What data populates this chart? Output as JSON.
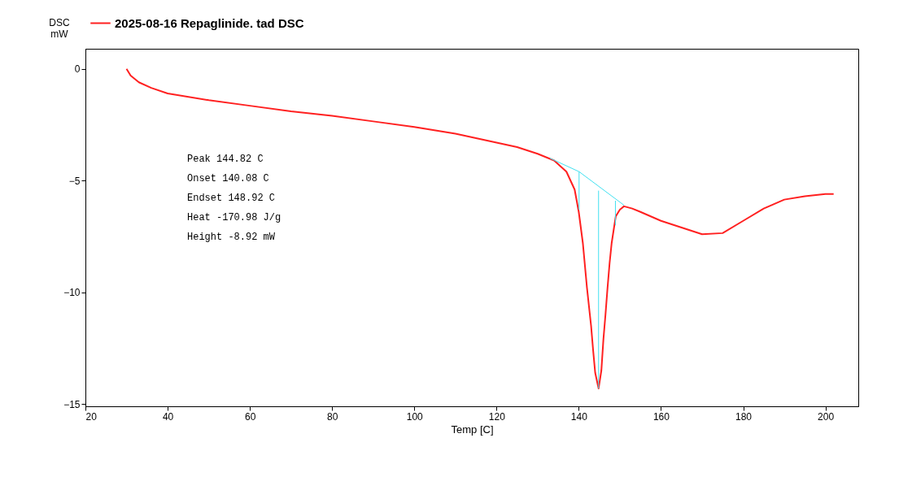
{
  "chart_data": {
    "type": "line",
    "xlabel": "Temp   [C]",
    "ylabel": "DSC mW",
    "xlim": [
      20,
      208
    ],
    "xticks": [
      20,
      40,
      60,
      80,
      100,
      120,
      140,
      160,
      180,
      200
    ],
    "ylim": [
      -15.1,
      0.9
    ],
    "yticks": [
      -15,
      -10,
      -5,
      0
    ],
    "grid": false,
    "legend": "top",
    "marker": "none",
    "line_style": "solid",
    "annotations": [
      "Peak          144.82  C",
      "Onset         140.08  C",
      "Endset        148.92  C",
      "Heat          -170.98  J/g",
      "Height        -8.92  mW"
    ],
    "series": [
      {
        "name": "2025-08-16 Repaglinide. tad DSC",
        "color": "#ff2020",
        "x": [
          30,
          31,
          33,
          36,
          40,
          50,
          60,
          70,
          80,
          90,
          100,
          110,
          120,
          125,
          130,
          134,
          137,
          139,
          140,
          141,
          142,
          143,
          143.5,
          144,
          144.82,
          145.5,
          146,
          146.5,
          147,
          147.5,
          148,
          149,
          150,
          151,
          153,
          155,
          160,
          165,
          170,
          175,
          180,
          185,
          190,
          195,
          200,
          202
        ],
        "values": [
          0,
          -0.3,
          -0.6,
          -0.85,
          -1.1,
          -1.4,
          -1.65,
          -1.9,
          -2.1,
          -2.35,
          -2.6,
          -2.9,
          -3.3,
          -3.5,
          -3.8,
          -4.1,
          -4.6,
          -5.4,
          -6.4,
          -7.8,
          -9.8,
          -11.5,
          -12.6,
          -13.6,
          -14.3,
          -13.5,
          -12.1,
          -11,
          -9.8,
          -8.7,
          -7.8,
          -6.6,
          -6.3,
          -6.15,
          -6.25,
          -6.4,
          -6.8,
          -7.1,
          -7.4,
          -7.35,
          -6.8,
          -6.25,
          -5.85,
          -5.7,
          -5.6,
          -5.6
        ]
      },
      {
        "color": "#40e0f0",
        "x": [
          133,
          140.08,
          151
        ],
        "values": [
          -4.0,
          -4.6,
          -6.1
        ]
      },
      {
        "color": "#40e0f0",
        "x": [
          140.08,
          140.08
        ],
        "values": [
          -4.6,
          -6.3
        ]
      },
      {
        "color": "#40e0f0",
        "x": [
          144.82,
          144.82
        ],
        "values": [
          -5.45,
          -14.3
        ]
      },
      {
        "color": "#40e0f0",
        "x": [
          148.92,
          148.92
        ],
        "values": [
          -5.9,
          -7.0
        ]
      }
    ]
  }
}
